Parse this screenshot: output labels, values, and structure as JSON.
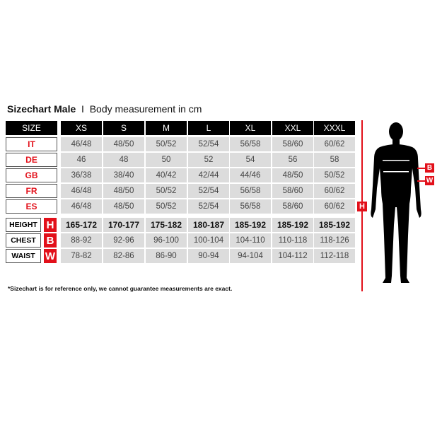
{
  "title": {
    "main": "Sizechart Male",
    "separator": "I",
    "subtitle": "Body measurement in cm"
  },
  "header": {
    "label": "SIZE",
    "sizes": [
      "XS",
      "S",
      "M",
      "L",
      "XL",
      "XXL",
      "XXXL"
    ]
  },
  "conversion_rows": [
    {
      "label": "IT",
      "values": [
        "46/48",
        "48/50",
        "50/52",
        "52/54",
        "56/58",
        "58/60",
        "60/62"
      ]
    },
    {
      "label": "DE",
      "values": [
        "46",
        "48",
        "50",
        "52",
        "54",
        "56",
        "58"
      ]
    },
    {
      "label": "GB",
      "values": [
        "36/38",
        "38/40",
        "40/42",
        "42/44",
        "44/46",
        "48/50",
        "50/52"
      ]
    },
    {
      "label": "FR",
      "values": [
        "46/48",
        "48/50",
        "50/52",
        "52/54",
        "56/58",
        "58/60",
        "60/62"
      ]
    },
    {
      "label": "ES",
      "values": [
        "46/48",
        "48/50",
        "50/52",
        "52/54",
        "56/58",
        "58/60",
        "60/62"
      ]
    }
  ],
  "measurement_rows": [
    {
      "label": "HEIGHT",
      "badge": "H",
      "values": [
        "165-172",
        "170-177",
        "175-182",
        "180-187",
        "185-192",
        "185-192",
        "185-192"
      ]
    },
    {
      "label": "CHEST",
      "badge": "B",
      "values": [
        "88-92",
        "92-96",
        "96-100",
        "100-104",
        "104-110",
        "110-118",
        "118-126"
      ]
    },
    {
      "label": "WAIST",
      "badge": "W",
      "values": [
        "78-82",
        "82-86",
        "86-90",
        "90-94",
        "94-104",
        "104-112",
        "112-118"
      ]
    }
  ],
  "figure": {
    "height_badge": "H",
    "chest_badge": "B",
    "waist_badge": "W"
  },
  "footnote": "*Sizechart is for reference only, we cannot guarantee measurements are exact.",
  "colors": {
    "accent": "#e2101a",
    "header": "#000000",
    "cell": "#dcdcdc"
  }
}
